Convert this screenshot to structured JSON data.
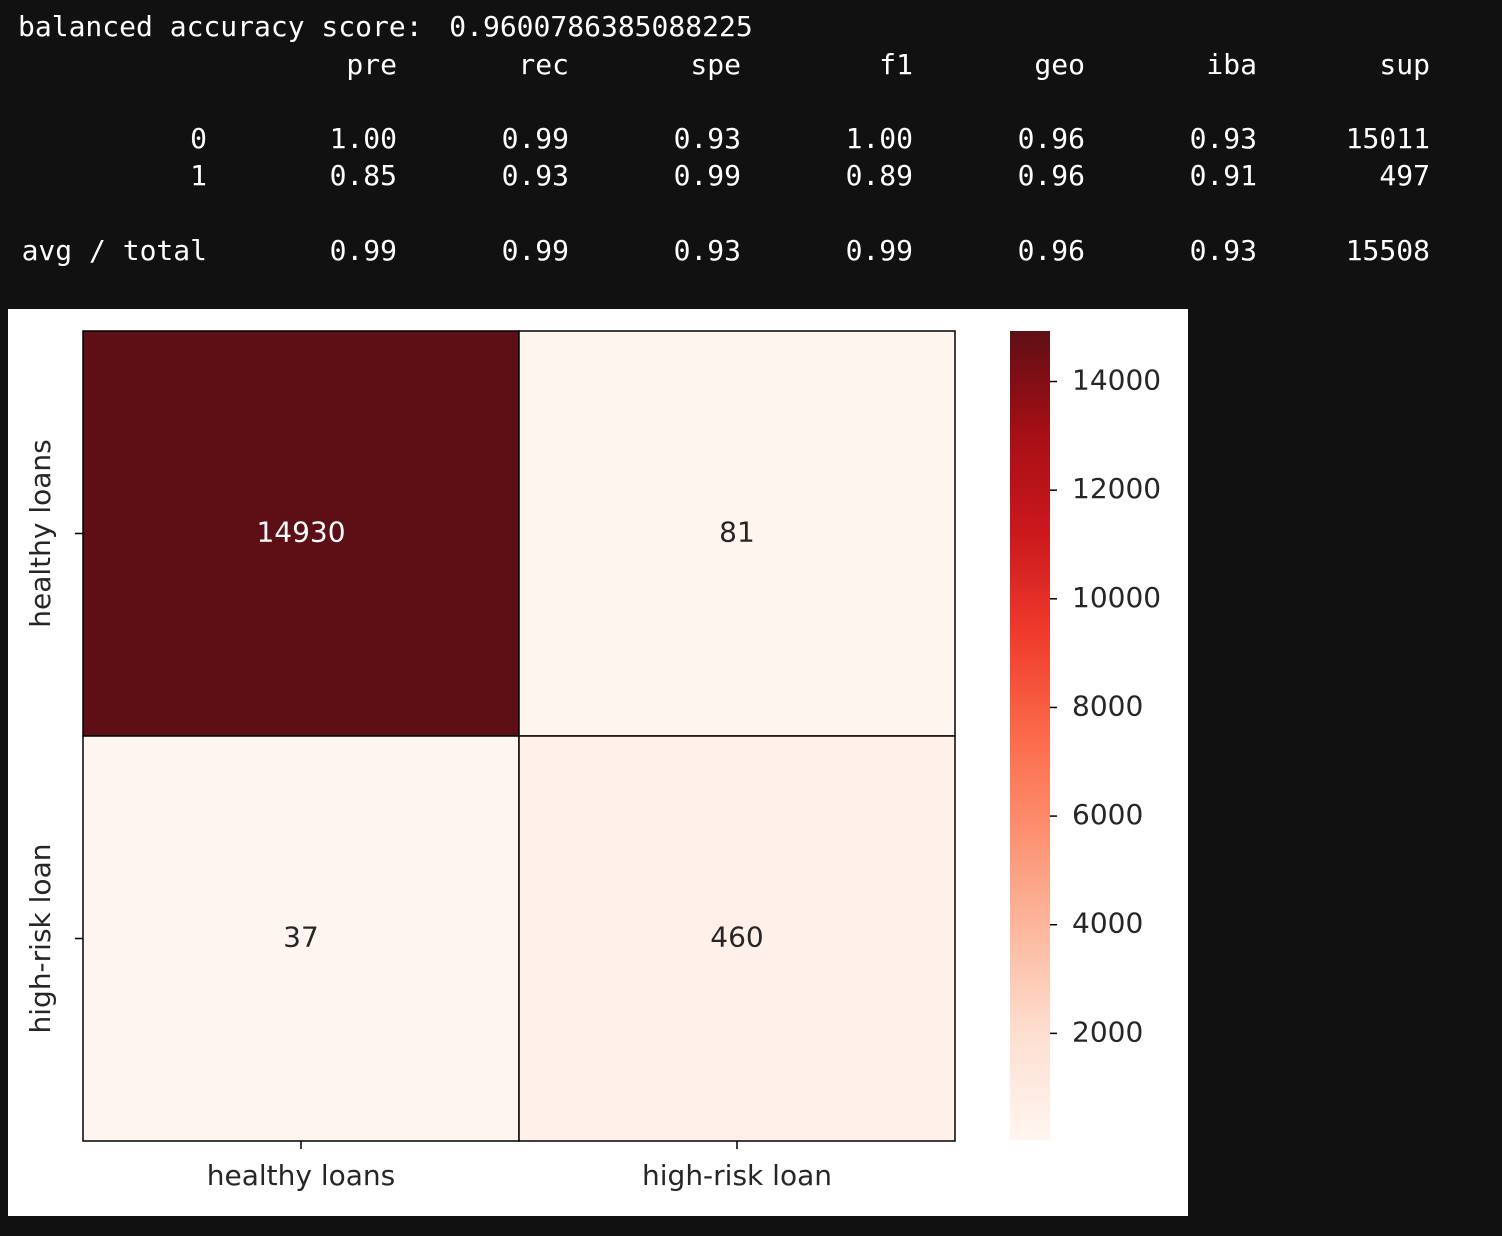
{
  "report": {
    "score_label": "balanced accuracy score:",
    "score": "0.9600786385088225",
    "columns": [
      "pre",
      "rec",
      "spe",
      "f1",
      "geo",
      "iba",
      "sup"
    ],
    "rows": [
      [
        "0",
        "1.00",
        "0.99",
        "0.93",
        "1.00",
        "0.96",
        "0.93",
        "15011"
      ],
      [
        "1",
        "0.85",
        "0.93",
        "0.99",
        "0.89",
        "0.96",
        "0.91",
        "497"
      ],
      [
        "avg / total",
        "0.99",
        "0.99",
        "0.93",
        "0.99",
        "0.96",
        "0.93",
        "15508"
      ]
    ]
  },
  "chart_data": {
    "type": "heatmap",
    "x_categories": [
      "healthy loans",
      "high-risk loan"
    ],
    "y_categories": [
      "healthy loans",
      "high-risk loan"
    ],
    "values": [
      [
        14930,
        81
      ],
      [
        37,
        460
      ]
    ],
    "colormap": [
      "#fff5f0",
      "#fee0d2",
      "#fcbba1",
      "#fc9272",
      "#fb6a4a",
      "#ef3b2c",
      "#cb181d",
      "#a50f15",
      "#5e0f15"
    ],
    "colorbar": {
      "lim": [
        37,
        14930
      ],
      "ticks": [
        2000,
        4000,
        6000,
        8000,
        10000,
        12000,
        14000
      ]
    }
  }
}
